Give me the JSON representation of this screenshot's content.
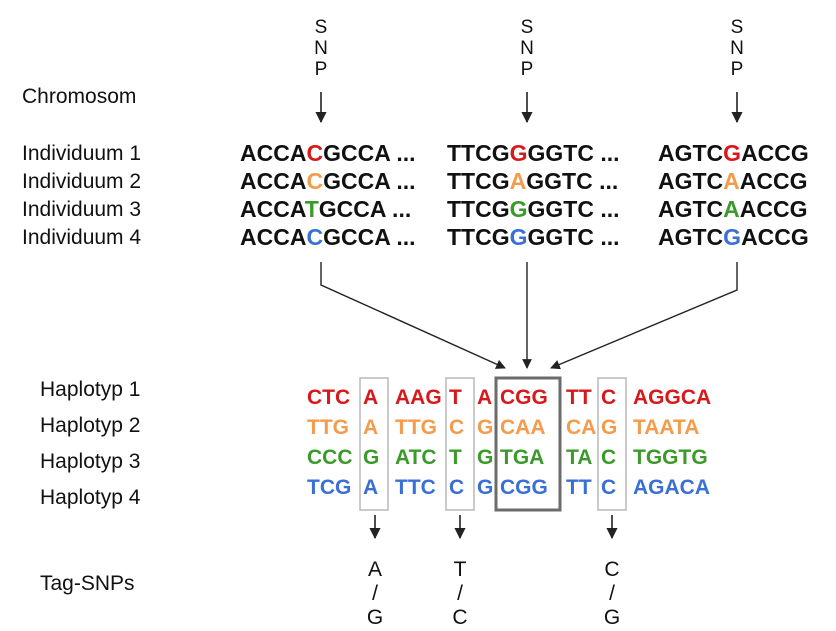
{
  "colors": {
    "black": "#111111",
    "red": "#d7191c",
    "orange": "#f59b4c",
    "green": "#3a9a2a",
    "blue": "#3a6fd8",
    "box_light": "#b8b8b8",
    "box_dark": "#6b6b6b",
    "arrow": "#222222"
  },
  "labels": {
    "chromosome": "Chromosom",
    "tag_snps": "Tag-SNPs"
  },
  "snp_marker": [
    "S",
    "N",
    "P"
  ],
  "individuals": [
    {
      "label": "Individuum 1",
      "segments": [
        {
          "pre": "ACCA",
          "snp": "C",
          "post": "GCCA",
          "gap": "..."
        },
        {
          "pre": "TTCG",
          "snp": "G",
          "post": "GGTC",
          "gap": "..."
        },
        {
          "pre": "AGTC",
          "snp": "G",
          "post": "ACCG",
          "gap": ""
        }
      ],
      "snp_color": "red"
    },
    {
      "label": "Individuum 2",
      "segments": [
        {
          "pre": "ACCA",
          "snp": "C",
          "post": "GCCA",
          "gap": "..."
        },
        {
          "pre": "TTCG",
          "snp": "A",
          "post": "GGTC",
          "gap": "..."
        },
        {
          "pre": "AGTC",
          "snp": "A",
          "post": "ACCG",
          "gap": ""
        }
      ],
      "snp_color": "orange"
    },
    {
      "label": "Individuum 3",
      "segments": [
        {
          "pre": "ACCA",
          "snp": "T",
          "post": "GCCA",
          "gap": "..."
        },
        {
          "pre": "TTCG",
          "snp": "G",
          "post": "GGTC",
          "gap": "..."
        },
        {
          "pre": "AGTC",
          "snp": "A",
          "post": "ACCG",
          "gap": ""
        }
      ],
      "snp_color": "green"
    },
    {
      "label": "Individuum 4",
      "segments": [
        {
          "pre": "ACCA",
          "snp": "C",
          "post": "GCCA",
          "gap": "..."
        },
        {
          "pre": "TTCG",
          "snp": "G",
          "post": "GGTC",
          "gap": "..."
        },
        {
          "pre": "AGTC",
          "snp": "G",
          "post": "ACCG",
          "gap": ""
        }
      ],
      "snp_color": "blue"
    }
  ],
  "haplotypes": [
    {
      "label": "Haplotyp 1",
      "color": "red",
      "groups": [
        "CTC",
        "A",
        "AAG",
        "T",
        "A",
        "CGG",
        "TT",
        "C",
        "AGGCA"
      ]
    },
    {
      "label": "Haplotyp 2",
      "color": "orange",
      "groups": [
        "TTG",
        "A",
        "TTG",
        "C",
        "G",
        "CAA",
        "CA",
        "G",
        "TAATA"
      ]
    },
    {
      "label": "Haplotyp 3",
      "color": "green",
      "groups": [
        "CCC",
        "G",
        "ATC",
        "T",
        "G",
        "TGA",
        "TA",
        "C",
        "TGGTG"
      ]
    },
    {
      "label": "Haplotyp 4",
      "color": "blue",
      "groups": [
        "TCG",
        "A",
        "TTC",
        "C",
        "G",
        "CGG",
        "TT",
        "C",
        "AGACA"
      ]
    }
  ],
  "tag_snps": [
    {
      "top": "A",
      "sep": "/",
      "bottom": "G"
    },
    {
      "top": "T",
      "sep": "/",
      "bottom": "C"
    },
    {
      "top": "C",
      "sep": "/",
      "bottom": "G"
    }
  ]
}
